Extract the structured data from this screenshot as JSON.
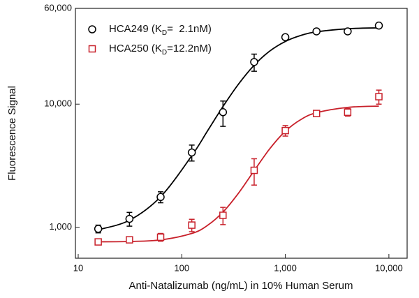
{
  "chart_data": {
    "type": "scatter",
    "x_label": "Anti-Natalizumab (ng/mL) in 10% Human Serum",
    "y_label": "Fluorescence Signal",
    "log_x": true,
    "log_y": true,
    "legend": "upper-left",
    "x": [
      15.6,
      31.25,
      62.5,
      125,
      250,
      500,
      1000,
      2000,
      4000,
      8000
    ],
    "fit_x": [
      15.6,
      31.25,
      62.5,
      125,
      177,
      250,
      354,
      500,
      707,
      1000,
      1414,
      2000,
      4000,
      8000
    ],
    "series": [
      {
        "name": [
          "HCA249 (K",
          "D",
          "=  2.1nM)"
        ],
        "color": "#000000",
        "marker": "circle",
        "values": [
          970,
          1170,
          1760,
          4050,
          8600,
          22000,
          35000,
          39000,
          39000,
          43500
        ],
        "errors": [
          70,
          150,
          180,
          600,
          2000,
          3500,
          1500,
          1000,
          1000,
          1500
        ],
        "fit_values": [
          954,
          1139,
          1769,
          3816,
          6047,
          9564,
          14594,
          20713,
          26983,
          32313,
          36169,
          38657,
          40980,
          41704
        ]
      },
      {
        "name": [
          "HCA250 (K",
          "D",
          "=12.2nM)"
        ],
        "color": "#c8202a",
        "marker": "square",
        "values": [
          760,
          790,
          830,
          1040,
          1250,
          2900,
          6100,
          8400,
          8600,
          11500
        ],
        "errors": [
          30,
          30,
          60,
          120,
          200,
          700,
          600,
          300,
          600,
          1500
        ],
        "fit_values": [
          761,
          766,
          789,
          890,
          1034,
          1327,
          1896,
          2881,
          4337,
          6021,
          7501,
          8519,
          9414,
          9637
        ]
      }
    ],
    "xlim": [
      9.4,
      15000
    ],
    "xticks": [
      10,
      100,
      {
        "value": 1000,
        "label": "1,000"
      },
      {
        "value": 10000,
        "label": "10,000"
      }
    ],
    "ylim": [
      560,
      60000
    ],
    "yticks": [
      {
        "value": 1000,
        "label": "1,000"
      },
      {
        "value": 10000,
        "label": "10,000"
      },
      {
        "value": 60000,
        "label": "60,000"
      }
    ]
  }
}
